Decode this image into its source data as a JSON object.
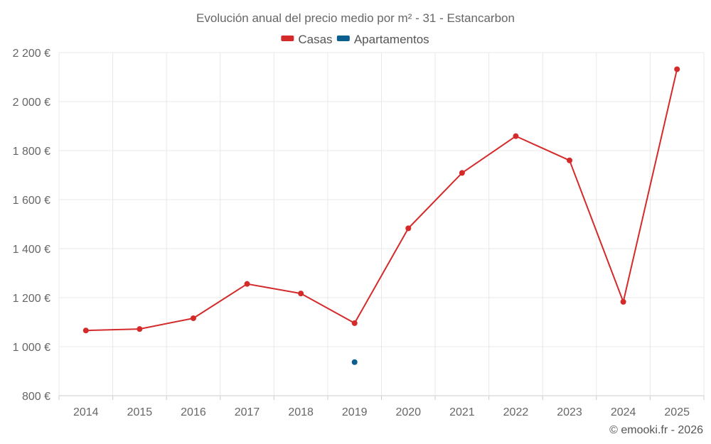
{
  "chart_data": {
    "type": "line",
    "title": "Evolución anual del precio medio por m² - 31 - Estancarbon",
    "categories": [
      "2014",
      "2015",
      "2016",
      "2017",
      "2018",
      "2019",
      "2020",
      "2021",
      "2022",
      "2023",
      "2024",
      "2025"
    ],
    "series": [
      {
        "name": "Casas",
        "color": "#d42a2a",
        "values": [
          1066,
          1072,
          1116,
          1256,
          1217,
          1096,
          1483,
          1709,
          1859,
          1760,
          1183,
          2132
        ]
      },
      {
        "name": "Apartamentos",
        "color": "#0b5f8f",
        "values": [
          null,
          null,
          null,
          null,
          null,
          937,
          null,
          null,
          null,
          null,
          null,
          null
        ]
      }
    ],
    "ylim": [
      800,
      2200
    ],
    "yticks": [
      800,
      1000,
      1200,
      1400,
      1600,
      1800,
      2000,
      2200
    ],
    "ytick_labels": [
      "800 €",
      "1 000 €",
      "1 200 €",
      "1 400 €",
      "1 600 €",
      "1 800 €",
      "2 000 €",
      "2 200 €"
    ],
    "xlabel": "",
    "ylabel": "",
    "grid": true,
    "legend_position": "top-center"
  },
  "credit": "© emooki.fr - 2026"
}
